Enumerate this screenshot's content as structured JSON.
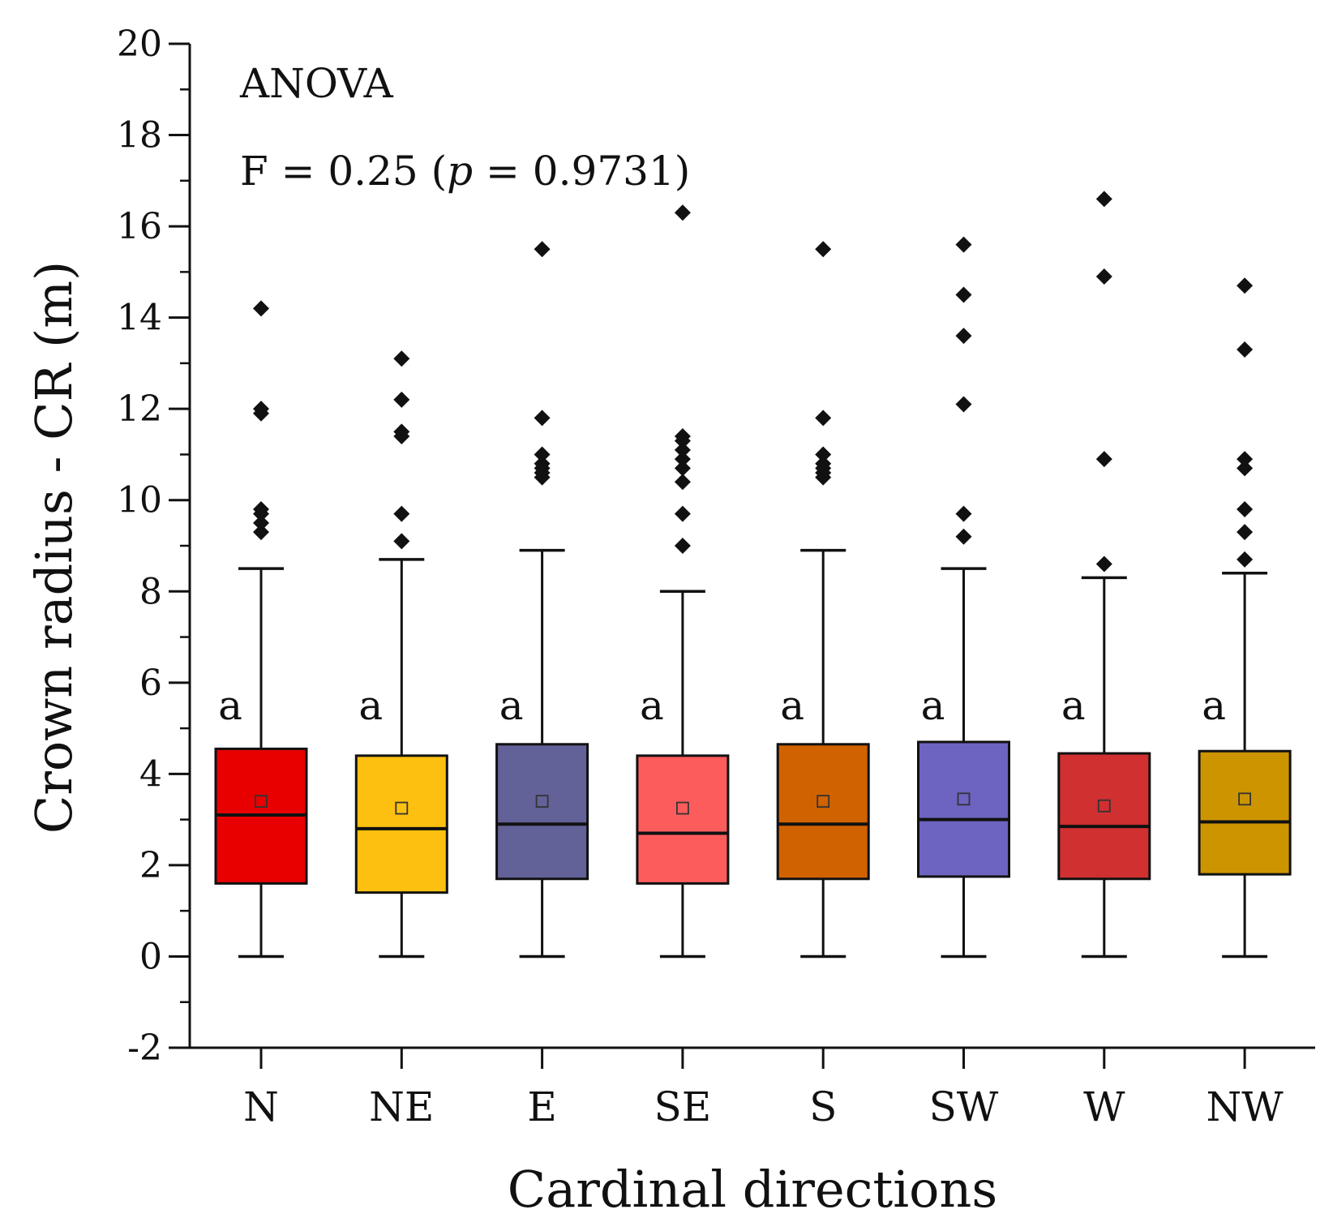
{
  "chart_data": {
    "type": "box",
    "xlabel": "Cardinal directions",
    "ylabel": "Crown radius - CR (m)",
    "ylim": [
      -2,
      20
    ],
    "yticks": [
      -2,
      0,
      2,
      4,
      6,
      8,
      10,
      12,
      14,
      16,
      18,
      20
    ],
    "annotations": {
      "test": "ANOVA",
      "stat_prefix": "F = 0.25 (",
      "stat_p": "p",
      "stat_suffix": " = 0.9731)"
    },
    "boxes": [
      {
        "category": "N",
        "color": "#e80000",
        "min": 0,
        "q1": 1.6,
        "median": 3.1,
        "q3": 4.55,
        "max": 8.5,
        "mean": 3.4,
        "letter": "a",
        "outliers": [
          9.3,
          9.5,
          9.7,
          9.8,
          11.9,
          12.0,
          14.2
        ]
      },
      {
        "category": "NE",
        "color": "#fdc010",
        "min": 0,
        "q1": 1.4,
        "median": 2.8,
        "q3": 4.4,
        "max": 8.7,
        "mean": 3.25,
        "letter": "a",
        "outliers": [
          9.1,
          9.7,
          11.4,
          11.5,
          12.2,
          13.1
        ]
      },
      {
        "category": "E",
        "color": "#626198",
        "min": 0,
        "q1": 1.7,
        "median": 2.9,
        "q3": 4.65,
        "max": 8.9,
        "mean": 3.4,
        "letter": "a",
        "outliers": [
          10.5,
          10.6,
          10.7,
          10.8,
          11.0,
          11.8,
          15.5
        ]
      },
      {
        "category": "SE",
        "color": "#fd5c5c",
        "min": 0,
        "q1": 1.6,
        "median": 2.7,
        "q3": 4.4,
        "max": 8.0,
        "mean": 3.25,
        "letter": "a",
        "outliers": [
          9.0,
          9.7,
          10.4,
          10.7,
          10.9,
          11.1,
          11.3,
          11.4,
          16.3
        ]
      },
      {
        "category": "S",
        "color": "#d06200",
        "min": 0,
        "q1": 1.7,
        "median": 2.9,
        "q3": 4.65,
        "max": 8.9,
        "mean": 3.4,
        "letter": "a",
        "outliers": [
          10.5,
          10.6,
          10.7,
          10.8,
          11.0,
          11.8,
          15.5
        ]
      },
      {
        "category": "SW",
        "color": "#6c64c0",
        "min": 0,
        "q1": 1.75,
        "median": 3.0,
        "q3": 4.7,
        "max": 8.5,
        "mean": 3.45,
        "letter": "a",
        "outliers": [
          9.2,
          9.7,
          12.1,
          13.6,
          14.5,
          15.6
        ]
      },
      {
        "category": "W",
        "color": "#d03030",
        "min": 0,
        "q1": 1.7,
        "median": 2.85,
        "q3": 4.45,
        "max": 8.3,
        "mean": 3.3,
        "letter": "a",
        "outliers": [
          8.6,
          10.9,
          14.9,
          16.6
        ]
      },
      {
        "category": "NW",
        "color": "#cc9500",
        "min": 0,
        "q1": 1.8,
        "median": 2.95,
        "q3": 4.5,
        "max": 8.4,
        "mean": 3.45,
        "letter": "a",
        "outliers": [
          8.7,
          9.3,
          9.8,
          10.7,
          10.9,
          13.3,
          14.7
        ]
      }
    ]
  }
}
